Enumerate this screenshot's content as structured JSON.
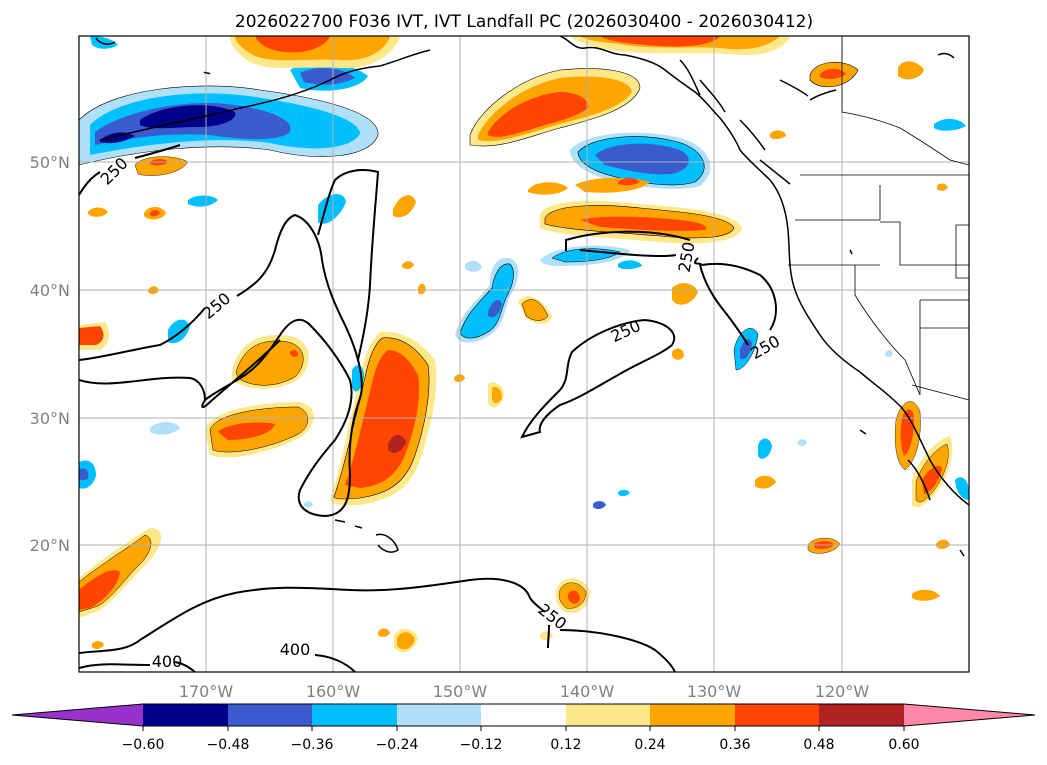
{
  "title": "2026022700 F036 IVT, IVT Landfall PC (2026030400 - 2026030412)",
  "lat_labels": [
    "50°N",
    "40°N",
    "30°N",
    "20°N"
  ],
  "lon_labels": [
    "170°W",
    "160°W",
    "150°W",
    "140°W",
    "130°W",
    "120°W"
  ],
  "contour_labels": [
    "250",
    "250",
    "250",
    "250",
    "250",
    "250",
    "400",
    "400"
  ],
  "colorbar": {
    "ticks": [
      "−0.60",
      "−0.48",
      "−0.36",
      "−0.24",
      "−0.12",
      "0.12",
      "0.24",
      "0.36",
      "0.48",
      "0.60"
    ],
    "colors": [
      "#9932cc",
      "#00008b",
      "#3a5bd0",
      "#00bfff",
      "#b0e0f8",
      "#ffffff",
      "#ffe88a",
      "#ffa500",
      "#ff4500",
      "#b22222",
      "#ff88aa"
    ]
  },
  "map_extent": {
    "lon_min": -180,
    "lon_max": -110,
    "lat_min": 10,
    "lat_max": 60
  }
}
